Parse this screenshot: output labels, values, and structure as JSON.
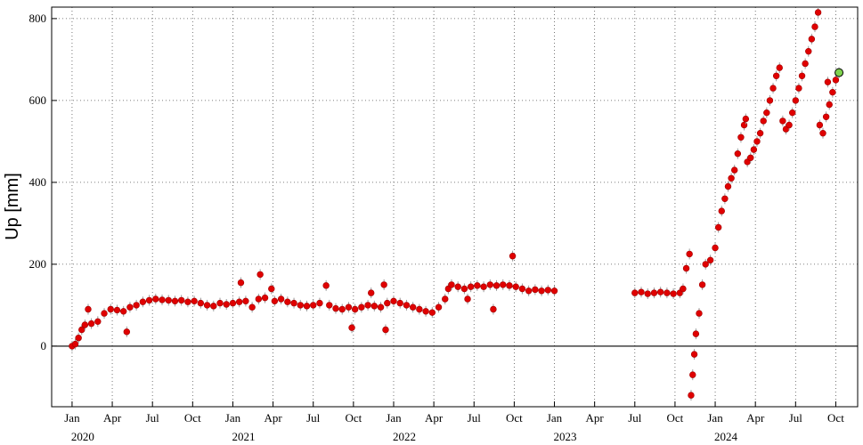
{
  "chart_data": {
    "type": "scatter",
    "y_label": "Up [mm]",
    "xlim": [
      2019.873,
      2024.886
    ],
    "ylim": [
      -148,
      828
    ],
    "xticks": [
      {
        "value": 2020.0,
        "label": "Jan"
      },
      {
        "value": 2020.25,
        "label": "Apr"
      },
      {
        "value": 2020.5,
        "label": "Jul"
      },
      {
        "value": 2020.75,
        "label": "Oct"
      },
      {
        "value": 2021.0,
        "label": "Jan"
      },
      {
        "value": 2021.25,
        "label": "Apr"
      },
      {
        "value": 2021.5,
        "label": "Jul"
      },
      {
        "value": 2021.75,
        "label": "Oct"
      },
      {
        "value": 2022.0,
        "label": "Jan"
      },
      {
        "value": 2022.25,
        "label": "Apr"
      },
      {
        "value": 2022.5,
        "label": "Jul"
      },
      {
        "value": 2022.75,
        "label": "Oct"
      },
      {
        "value": 2023.0,
        "label": "Jan"
      },
      {
        "value": 2023.25,
        "label": "Apr"
      },
      {
        "value": 2023.5,
        "label": "Jul"
      },
      {
        "value": 2023.75,
        "label": "Oct"
      },
      {
        "value": 2024.0,
        "label": "Jan"
      },
      {
        "value": 2024.25,
        "label": "Apr"
      },
      {
        "value": 2024.5,
        "label": "Jul"
      },
      {
        "value": 2024.75,
        "label": "Oct"
      }
    ],
    "year_ticks": [
      2020,
      2021,
      2022,
      2023,
      2024
    ],
    "yticks": [
      0,
      200,
      400,
      600,
      800
    ],
    "grid": true,
    "zero_line": true,
    "color": "#e00000",
    "highlight_color": "#7fd34e",
    "x": [
      2020.0,
      2020.02,
      2020.04,
      2020.06,
      2020.08,
      2020.1,
      2020.12,
      2020.16,
      2020.2,
      2020.24,
      2020.28,
      2020.32,
      2020.34,
      2020.36,
      2020.4,
      2020.44,
      2020.48,
      2020.52,
      2020.56,
      2020.6,
      2020.64,
      2020.68,
      2020.72,
      2020.76,
      2020.8,
      2020.84,
      2020.88,
      2020.92,
      2020.96,
      2021.0,
      2021.04,
      2021.05,
      2021.08,
      2021.12,
      2021.16,
      2021.17,
      2021.2,
      2021.24,
      2021.26,
      2021.3,
      2021.34,
      2021.38,
      2021.42,
      2021.46,
      2021.5,
      2021.54,
      2021.58,
      2021.6,
      2021.64,
      2021.68,
      2021.72,
      2021.74,
      2021.76,
      2021.8,
      2021.84,
      2021.86,
      2021.88,
      2021.92,
      2021.94,
      2021.95,
      2021.96,
      2022.0,
      2022.04,
      2022.08,
      2022.12,
      2022.16,
      2022.2,
      2022.24,
      2022.28,
      2022.32,
      2022.34,
      2022.36,
      2022.4,
      2022.44,
      2022.46,
      2022.48,
      2022.52,
      2022.56,
      2022.6,
      2022.62,
      2022.64,
      2022.68,
      2022.72,
      2022.74,
      2022.76,
      2022.8,
      2022.84,
      2022.88,
      2022.92,
      2022.96,
      2023.0,
      2023.5,
      2023.54,
      2023.58,
      2023.62,
      2023.66,
      2023.7,
      2023.74,
      2023.78,
      2023.8,
      2023.82,
      2023.84,
      2023.85,
      2023.86,
      2023.87,
      2023.88,
      2023.9,
      2023.92,
      2023.94,
      2023.97,
      2024.0,
      2024.02,
      2024.04,
      2024.06,
      2024.08,
      2024.1,
      2024.12,
      2024.14,
      2024.16,
      2024.18,
      2024.19,
      2024.2,
      2024.22,
      2024.24,
      2024.26,
      2024.28,
      2024.3,
      2024.32,
      2024.34,
      2024.36,
      2024.38,
      2024.4,
      2024.42,
      2024.44,
      2024.46,
      2024.48,
      2024.5,
      2024.52,
      2024.54,
      2024.56,
      2024.58,
      2024.6,
      2024.62,
      2024.64,
      2024.65,
      2024.67,
      2024.69,
      2024.7,
      2024.71,
      2024.73,
      2024.75,
      2024.77
    ],
    "values": [
      0,
      5,
      20,
      40,
      52,
      90,
      55,
      60,
      80,
      90,
      88,
      85,
      35,
      95,
      100,
      108,
      112,
      115,
      113,
      112,
      110,
      112,
      108,
      110,
      105,
      100,
      98,
      105,
      102,
      105,
      108,
      155,
      110,
      95,
      115,
      175,
      118,
      140,
      110,
      115,
      108,
      105,
      100,
      98,
      100,
      105,
      148,
      100,
      92,
      90,
      95,
      45,
      90,
      95,
      100,
      130,
      98,
      95,
      150,
      40,
      105,
      110,
      105,
      100,
      95,
      90,
      85,
      82,
      95,
      115,
      140,
      150,
      145,
      140,
      115,
      145,
      148,
      145,
      150,
      90,
      148,
      150,
      148,
      220,
      145,
      140,
      135,
      138,
      135,
      137,
      135,
      130,
      132,
      128,
      130,
      132,
      130,
      128,
      130,
      140,
      190,
      225,
      -120,
      -70,
      -20,
      30,
      80,
      150,
      200,
      210,
      240,
      290,
      330,
      360,
      390,
      410,
      430,
      470,
      510,
      540,
      555,
      450,
      460,
      480,
      500,
      520,
      550,
      570,
      600,
      630,
      660,
      680,
      550,
      530,
      540,
      570,
      600,
      630,
      660,
      690,
      720,
      750,
      780,
      815,
      540,
      520,
      560,
      645,
      590,
      620,
      650,
      668
    ]
  }
}
